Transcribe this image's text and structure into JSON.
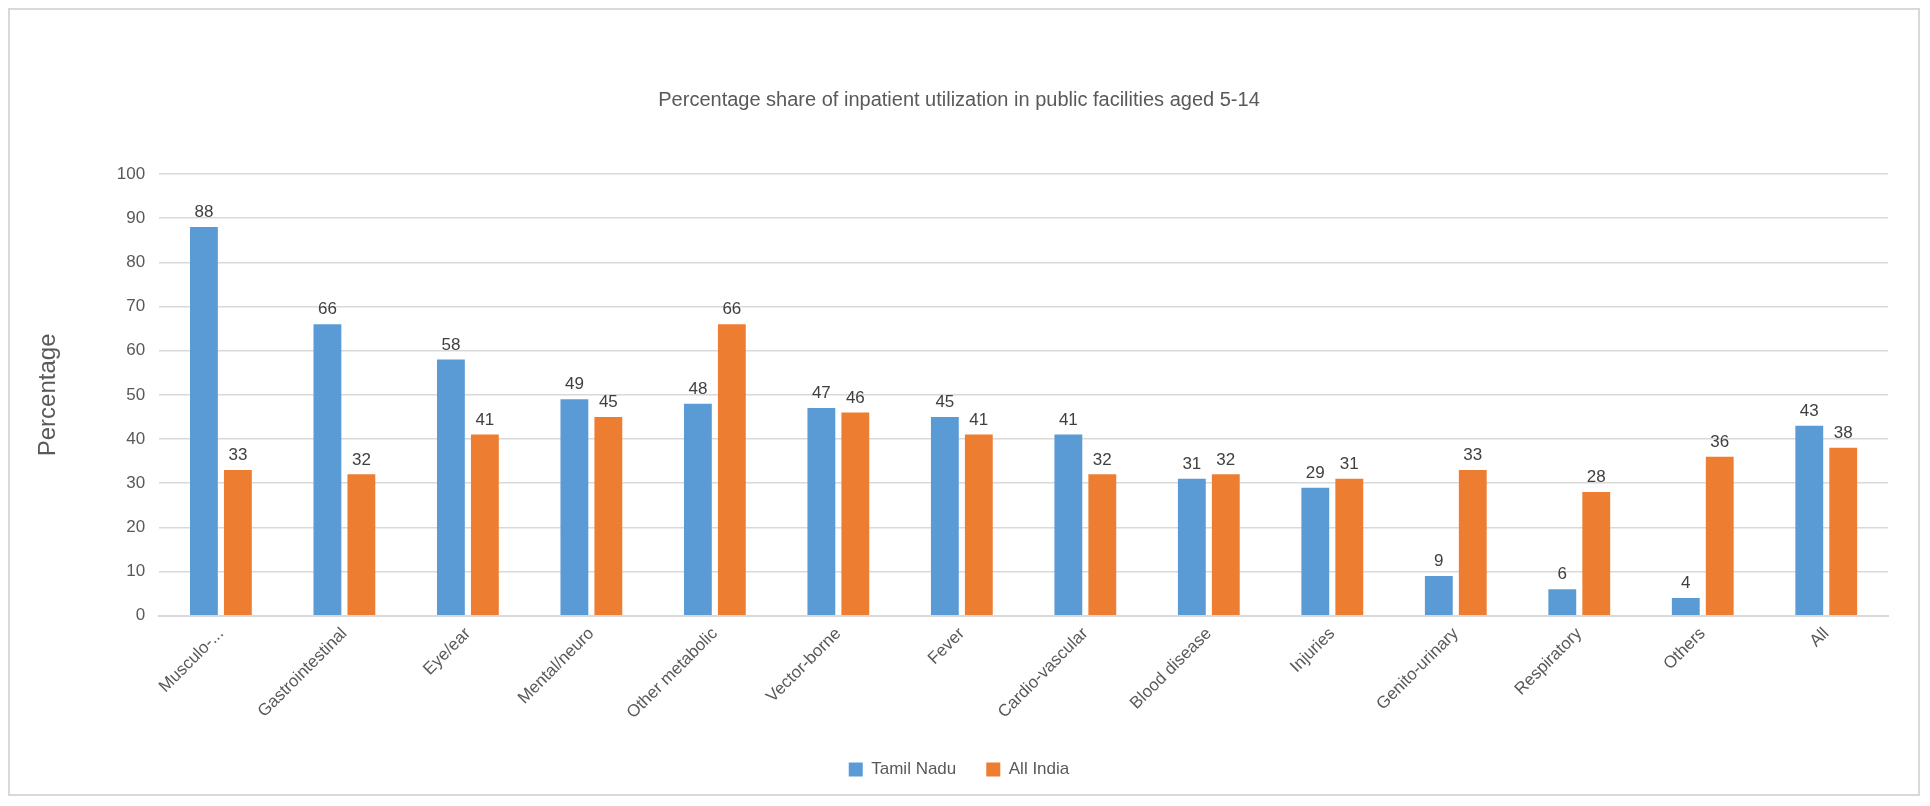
{
  "chart_data": {
    "type": "bar",
    "title": "Percentage share of inpatient utilization in public facilities aged 5-14",
    "ylabel": "Percentage",
    "categories": [
      "Musculo-...",
      "Gastrointestinal",
      "Eye/ear",
      "Mental/neuro",
      "Other metabolic",
      "Vector-borne",
      "Fever",
      "Cardio-vascular",
      "Blood disease",
      "Injuries",
      "Genito-urinary",
      "Respiratory",
      "Others",
      "All"
    ],
    "series": [
      {
        "name": "Tamil Nadu",
        "color": "#5b9bd5",
        "values": [
          88,
          66,
          58,
          49,
          48,
          47,
          45,
          41,
          31,
          29,
          9,
          6,
          4,
          43
        ]
      },
      {
        "name": "All India",
        "color": "#ed7d31",
        "values": [
          33,
          32,
          41,
          45,
          66,
          46,
          41,
          32,
          32,
          31,
          33,
          28,
          36,
          38
        ]
      }
    ],
    "ylim": [
      0,
      100
    ],
    "yticks": [
      0,
      10,
      20,
      30,
      40,
      50,
      60,
      70,
      80,
      90,
      100
    ],
    "grid": "y",
    "legend": "bottom",
    "data_labels": true
  }
}
